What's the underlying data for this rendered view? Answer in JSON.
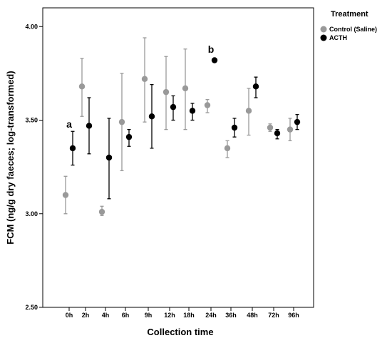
{
  "chart_data": {
    "type": "scatter",
    "title": "",
    "xlabel": "Collection time",
    "ylabel": "FCM (ng/g dry faeces; log-transformed)",
    "categories": [
      "0h",
      "2h",
      "4h",
      "6h",
      "9h",
      "12h",
      "18h",
      "24h",
      "36h",
      "48h",
      "72h",
      "96h"
    ],
    "ylim": [
      2.5,
      4.1
    ],
    "yticks": [
      "2.50",
      "3.00",
      "3.50",
      "4.00"
    ],
    "ytick_values": [
      2.5,
      3.0,
      3.5,
      4.0
    ],
    "grid": false,
    "legend_position": "top-right",
    "legend_title": "Treatment",
    "series": [
      {
        "name": "Control (Saline)",
        "color": "#999999",
        "values": [
          3.1,
          3.68,
          3.01,
          3.49,
          3.72,
          3.65,
          3.67,
          3.58,
          3.35,
          3.55,
          3.46,
          3.45
        ],
        "lower": [
          3.0,
          3.52,
          2.99,
          3.23,
          3.49,
          3.45,
          3.45,
          3.54,
          3.3,
          3.42,
          3.44,
          3.39
        ],
        "upper": [
          3.2,
          3.83,
          3.04,
          3.75,
          3.94,
          3.84,
          3.88,
          3.61,
          3.39,
          3.67,
          3.48,
          3.51
        ]
      },
      {
        "name": "ACTH",
        "color": "#000000",
        "values": [
          3.35,
          3.47,
          3.3,
          3.41,
          3.52,
          3.57,
          3.55,
          3.82,
          3.46,
          3.68,
          3.43,
          3.49
        ],
        "lower": [
          3.26,
          3.32,
          3.08,
          3.36,
          3.35,
          3.5,
          3.5,
          3.82,
          3.41,
          3.62,
          3.4,
          3.45
        ],
        "upper": [
          3.44,
          3.62,
          3.51,
          3.45,
          3.69,
          3.63,
          3.59,
          3.82,
          3.51,
          3.73,
          3.45,
          3.53
        ]
      }
    ],
    "annotations": [
      {
        "text": "a",
        "category": "0h",
        "y": 3.46
      },
      {
        "text": "b",
        "category": "24h",
        "y": 3.86
      }
    ]
  }
}
